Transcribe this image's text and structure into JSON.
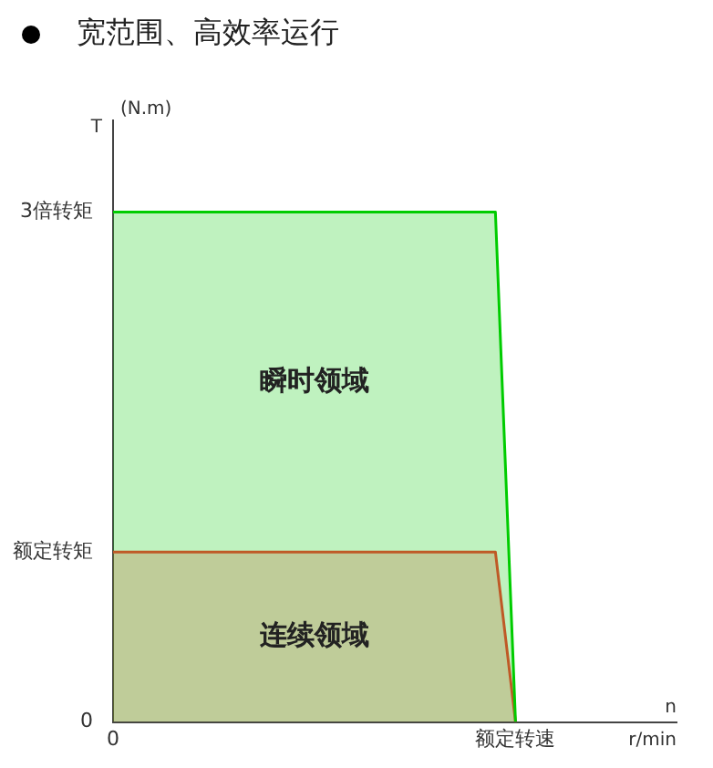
{
  "chart_data": {
    "type": "area",
    "title": "宽范围、高效率运行",
    "xlabel": "n",
    "ylabel": "T",
    "annotations": [
      "(N.m)",
      "r/min"
    ],
    "categories": [
      "0",
      null,
      null,
      null,
      null,
      null,
      null,
      null,
      null,
      null,
      null,
      null,
      null,
      null,
      null,
      null,
      null,
      null,
      null,
      null,
      "额定转速",
      null,
      null,
      null,
      null,
      null,
      null,
      null,
      null
    ],
    "ylim": [
      0,
      3.54
    ],
    "yticks": [
      0,
      {
        "value": 1,
        "label": "额定转矩"
      },
      {
        "value": 3,
        "label": "3倍转矩"
      }
    ],
    "grid": false,
    "legend": false,
    "series": [
      {
        "name": "瞬时领域",
        "color": "#00cc00",
        "values": [
          3,
          3,
          3,
          3,
          3,
          3,
          3,
          3,
          3,
          3,
          3,
          3,
          3,
          3,
          3,
          3,
          3,
          3,
          3,
          3,
          0,
          null,
          null,
          null,
          null,
          null,
          null,
          null,
          null
        ]
      },
      {
        "name": "连续领域",
        "color": "#ff3333",
        "values": [
          1,
          1,
          1,
          1,
          1,
          1,
          1,
          1,
          1,
          1,
          1,
          1,
          1,
          1,
          1,
          1,
          1,
          1,
          1,
          1,
          0,
          null,
          null,
          null,
          null,
          null,
          null,
          null,
          null
        ]
      }
    ]
  }
}
